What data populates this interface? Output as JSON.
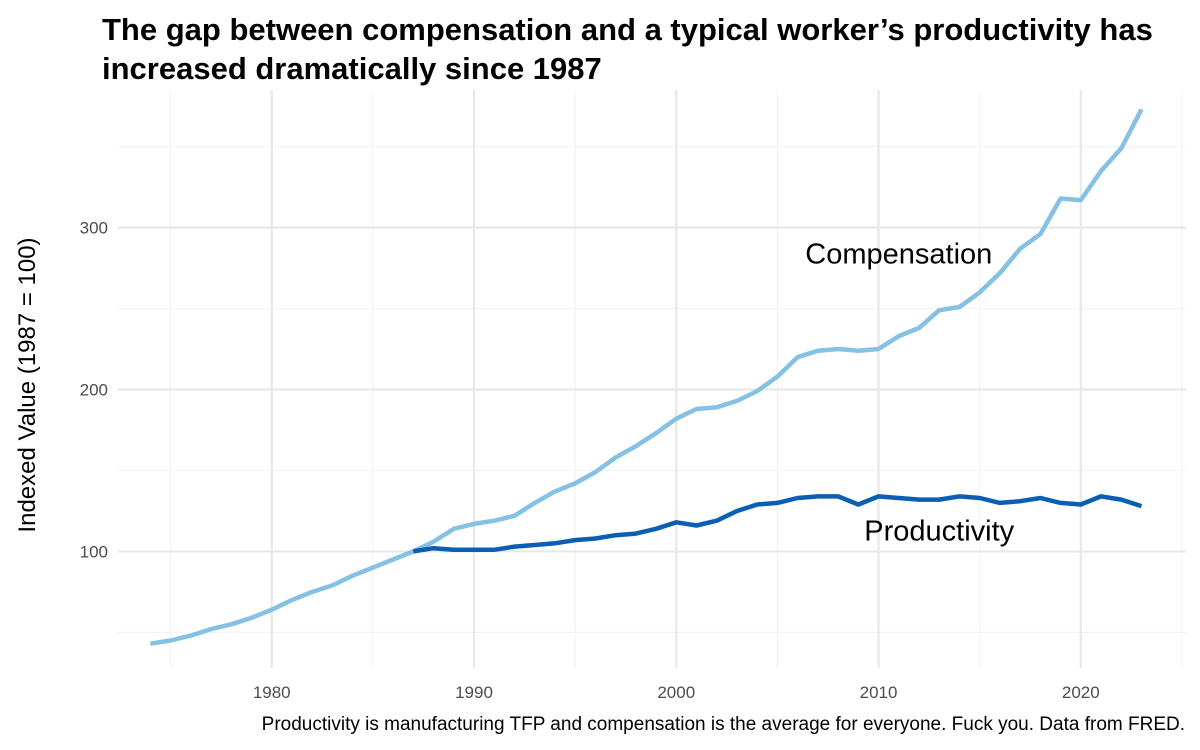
{
  "chart_data": {
    "type": "line",
    "title": "The gap between compensation and a typical worker’s productivity has increased dramatically since 1987",
    "xlabel": "",
    "ylabel": "Indexed Value (1987 = 100)",
    "caption": "Productivity is manufacturing TFP and compensation is the average for everyone. Fuck you. Data from FRED.",
    "xlim": [
      1972.4,
      2025.2
    ],
    "ylim": [
      28,
      385
    ],
    "x_ticks": [
      1980,
      1990,
      2000,
      2010,
      2020
    ],
    "y_ticks": [
      100,
      200,
      300
    ],
    "grid": true,
    "legend": "none",
    "series": [
      {
        "name": "Compensation",
        "color": "#85c1e5",
        "label_x": 2011,
        "label_y": 284,
        "points": [
          [
            1974,
            43
          ],
          [
            1975,
            45
          ],
          [
            1976,
            48
          ],
          [
            1977,
            52
          ],
          [
            1978,
            55
          ],
          [
            1979,
            59
          ],
          [
            1980,
            64
          ],
          [
            1981,
            70
          ],
          [
            1982,
            75
          ],
          [
            1983,
            79
          ],
          [
            1984,
            85
          ],
          [
            1985,
            90
          ],
          [
            1986,
            95
          ],
          [
            1987,
            100
          ],
          [
            1988,
            106
          ],
          [
            1989,
            114
          ],
          [
            1990,
            117
          ],
          [
            1991,
            119
          ],
          [
            1992,
            122
          ],
          [
            1993,
            130
          ],
          [
            1994,
            137
          ],
          [
            1995,
            142
          ],
          [
            1996,
            149
          ],
          [
            1997,
            158
          ],
          [
            1998,
            165
          ],
          [
            1999,
            173
          ],
          [
            2000,
            182
          ],
          [
            2001,
            188
          ],
          [
            2002,
            189
          ],
          [
            2003,
            193
          ],
          [
            2004,
            199
          ],
          [
            2005,
            208
          ],
          [
            2006,
            220
          ],
          [
            2007,
            224
          ],
          [
            2008,
            225
          ],
          [
            2009,
            224
          ],
          [
            2010,
            225
          ],
          [
            2011,
            233
          ],
          [
            2012,
            238
          ],
          [
            2013,
            249
          ],
          [
            2014,
            251
          ],
          [
            2015,
            260
          ],
          [
            2016,
            272
          ],
          [
            2017,
            287
          ],
          [
            2018,
            296
          ],
          [
            2019,
            318
          ],
          [
            2020,
            317
          ],
          [
            2021,
            335
          ],
          [
            2022,
            349
          ],
          [
            2023,
            373
          ]
        ]
      },
      {
        "name": "Productivity",
        "color": "#0a5fb4",
        "label_x": 2013,
        "label_y": 113,
        "points": [
          [
            1987,
            100
          ],
          [
            1988,
            102
          ],
          [
            1989,
            101
          ],
          [
            1990,
            101
          ],
          [
            1991,
            101
          ],
          [
            1992,
            103
          ],
          [
            1993,
            104
          ],
          [
            1994,
            105
          ],
          [
            1995,
            107
          ],
          [
            1996,
            108
          ],
          [
            1997,
            110
          ],
          [
            1998,
            111
          ],
          [
            1999,
            114
          ],
          [
            2000,
            118
          ],
          [
            2001,
            116
          ],
          [
            2002,
            119
          ],
          [
            2003,
            125
          ],
          [
            2004,
            129
          ],
          [
            2005,
            130
          ],
          [
            2006,
            133
          ],
          [
            2007,
            134
          ],
          [
            2008,
            134
          ],
          [
            2009,
            129
          ],
          [
            2010,
            134
          ],
          [
            2011,
            133
          ],
          [
            2012,
            132
          ],
          [
            2013,
            132
          ],
          [
            2014,
            134
          ],
          [
            2015,
            133
          ],
          [
            2016,
            130
          ],
          [
            2017,
            131
          ],
          [
            2018,
            133
          ],
          [
            2019,
            130
          ],
          [
            2020,
            129
          ],
          [
            2021,
            134
          ],
          [
            2022,
            132
          ],
          [
            2023,
            128
          ]
        ]
      }
    ]
  }
}
